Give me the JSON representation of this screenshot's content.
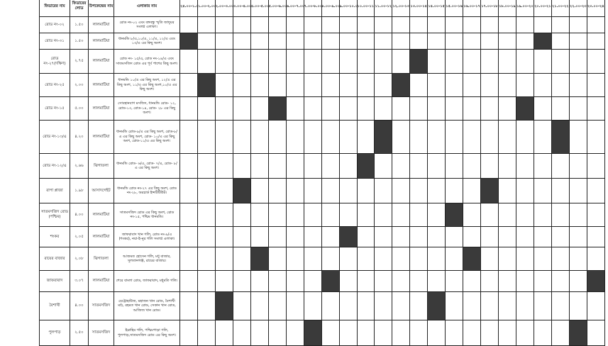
{
  "headers": {
    "feeder": "ফিডারের নাম",
    "load": "ফিডারের লোড",
    "substation": "উপকেন্দ্রের নাম",
    "area": "এলাকার নাম"
  },
  "slots": [
    "২৪.০০-১.০০",
    "১.০০-২.০০",
    "২.০০-৩.০০",
    "৩.০০-৪.০০",
    "৪.০০-৫.০০",
    "৫.০০-৬.০০",
    "৬.০০-৭.০০",
    "৭.০০-৮.০০",
    "৮.০০-৯.০০",
    "৯.০০-১০.০০",
    "১০.০০-১১.০০",
    "১১.০০-১২.০০",
    "১২.০০-১৩.০০",
    "১৩.০০-১৪.০০",
    "১৪.০০-১৫.০০",
    "১৫.০০-১৬.০০",
    "১৬.০০-১৭.০০",
    "১৭.০০-১৮.০০",
    "১৮.০০-১৯.০০",
    "১৯.০০-২০.০০",
    "২০.০০-২১.০০",
    "২১.০০-২২.০০",
    "২২.০০-২৩.০০",
    "২৩.০০-২৪.০০"
  ],
  "shed_color": "#3a3a3a",
  "rows": [
    {
      "feeder": "রোড নং-০২",
      "load": "১.৫০",
      "substation": "লালমাটিয়া",
      "area": "রোড নং-০২ এবং বঙ্গবন্ধু স্মৃতি জাদুঘর সংলগ্ন এলাকা।",
      "shed": []
    },
    {
      "feeder": "রোড নং-৩১",
      "load": "১.৫০",
      "substation": "লালমাটিয়া",
      "area": "ধানমন্ডি ৮/এ,১০/এ, ১১/এ, ১২/এ এবং ১৩/এ এর কিছু অংশ।",
      "shed": [
        0,
        20
      ]
    },
    {
      "feeder": "রোড নং-২৭(দক্ষিণ)",
      "load": "২.৭৫",
      "substation": "লালমাটিয়া",
      "area": "রোড নং- ১৫/এ, রোড নং-১৪/এ এবং সাতমসজিদ রোড এর পূর্ব পাশের কিছু অংশ।",
      "shed": [
        13
      ]
    },
    {
      "feeder": "রোড নং-২৫",
      "load": "২.০০",
      "substation": "লালমাটিয়া",
      "area": "ধানমন্ডি ১০/এ এর কিছু অংশ, ১২/এ এর কিছু অংশ, ১১/এ এর কিছু অংশ,১০/এ এর কিছু অংশ।",
      "shed": [
        1,
        12
      ]
    },
    {
      "feeder": "রোড নং-১৫",
      "load": "৫.০০",
      "substation": "লালমাটিয়া",
      "area": "সোবহানবাগ মসজিদ, ধানমন্ডি রোড- ১২, রোড-১৩, রোড-১৪, রোড- ২৮ এর কিছু অংশ।",
      "shed": [
        5,
        19
      ]
    },
    {
      "feeder": "রোড নং-১৩/এ",
      "load": "৪.২০",
      "substation": "লালমাটিয়া",
      "area": "ধানমন্ডি রোড-৯/এ এর কিছু অংশ, রোড-৮/এ এর কিছু অংশ, রোড- ১০/এ এর কিছু অংশ, রোড-১১/এ এর কিছু অংশ।",
      "shed": [
        11,
        21
      ]
    },
    {
      "feeder": "রোড নং-১২/এ",
      "load": "২.৬৬",
      "substation": "ঝিগাতলা",
      "area": "ধানমন্ডি রোড- ৬/এ, রোড- ৭/এ, রোড- ৮/এ এর কিছু অংশ।",
      "shed": [
        10
      ]
    },
    {
      "feeder": "রাপা প্লাজা",
      "load": "১.৯৮",
      "substation": "আসাদগেইট",
      "area": "ধানমন্ডি রোড নং-২৭ এর কিছু অংশ, রোড নং-২৮, অরচার্ড ইন্সটিটিউট।",
      "shed": [
        3,
        17
      ]
    },
    {
      "feeder": "সাতমসজিদ রোড (পশ্চিম)",
      "load": "৪.০০",
      "substation": "লালমাটিয়া",
      "area": "সাতমসজিদ রোড এর কিছু অংশ, রোড নং-১৫, পশ্চিম ধানমন্ডি।",
      "shed": [
        15
      ]
    },
    {
      "feeder": "শংকর",
      "load": "২.০৫",
      "substation": "লালমাটিয়া",
      "area": "জাফরাবাদ খান গলি, রোড নং-৯/এ (শংকর), নয়া-ই-নুর গলি সংলগ্ন এলাকা।",
      "shed": [
        9
      ]
    },
    {
      "feeder": "রায়ের বাজার",
      "load": "২.০৮",
      "substation": "ঝিগাতলা",
      "area": "আজমত হোসেন গলি, মধু বাজার, সুলতানগঞ্জ, রায়ের বাজার।",
      "shed": [
        4,
        16
      ]
    },
    {
      "feeder": "জাফরাবাদ",
      "load": "৩.০৭",
      "substation": "লালমাটিয়া",
      "area": "শেরে বাংলা রোড, জাফরাবাদ, মধুমতি গলি।",
      "shed": [
        8,
        23
      ]
    },
    {
      "feeder": "বৈশাখী",
      "load": "৪.০০",
      "substation": "সাতমসজিদ",
      "area": "মেট্রোহাউজ, মহাজন খান রোড, বৈশাখী মাঠ, রহমত খান রোড, সেকান খান রোড, আজিজ খান রোড।",
      "shed": [
        2,
        14
      ]
    },
    {
      "feeder": "পুলপাড়",
      "load": "২.৫০",
      "substation": "সাতমসজিদ",
      "area": "ইব্রাহিম গলি, পশ্চিমপাড়া গলি, পুলপাড়,সাতমসজিদ রোড এর কিছু অংশ।",
      "shed": [
        7,
        22
      ]
    }
  ]
}
